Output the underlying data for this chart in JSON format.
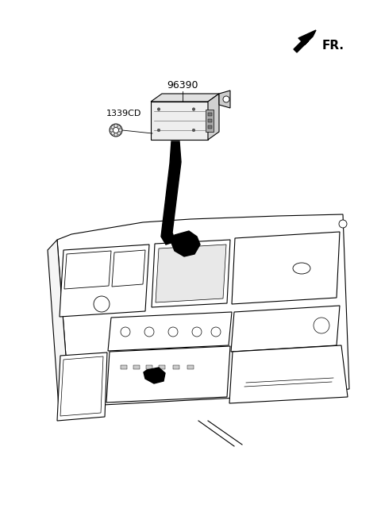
{
  "background_color": "#ffffff",
  "fig_width": 4.8,
  "fig_height": 6.55,
  "dpi": 100,
  "fr_label": "FR.",
  "part_label_96390": "96390",
  "part_label_1339CD": "1339CD",
  "line_color": "#000000",
  "fill_color": "#000000",
  "lw": 0.8
}
